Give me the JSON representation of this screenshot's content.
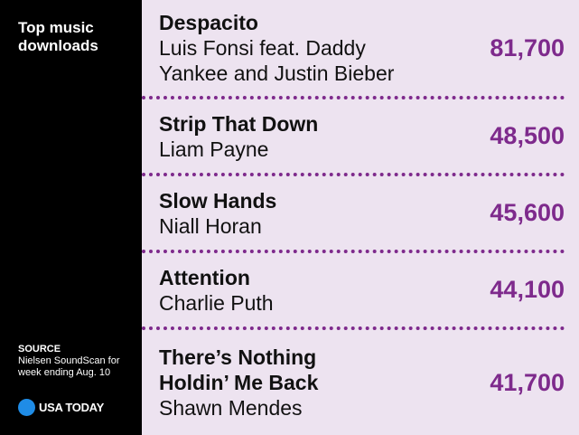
{
  "header": {
    "title": "Top music downloads"
  },
  "source": {
    "label": "SOURCE",
    "text": "Nielsen SoundScan for week ending Aug. 10"
  },
  "logo": "USA TODAY",
  "rows": [
    {
      "song": "Despacito",
      "artist": "Luis Fonsi feat. Daddy Yankee and Justin Bieber",
      "downloads": "81,700"
    },
    {
      "song": "Strip That Down",
      "artist": "Liam Payne",
      "downloads": "48,500"
    },
    {
      "song": "Slow Hands",
      "artist": "Niall Horan",
      "downloads": "45,600"
    },
    {
      "song": "Attention",
      "artist": "Charlie Puth",
      "downloads": "44,100"
    },
    {
      "song": "There’s Nothing Holdin’ Me Back",
      "artist": "Shawn Mendes",
      "downloads": "41,700"
    }
  ]
}
